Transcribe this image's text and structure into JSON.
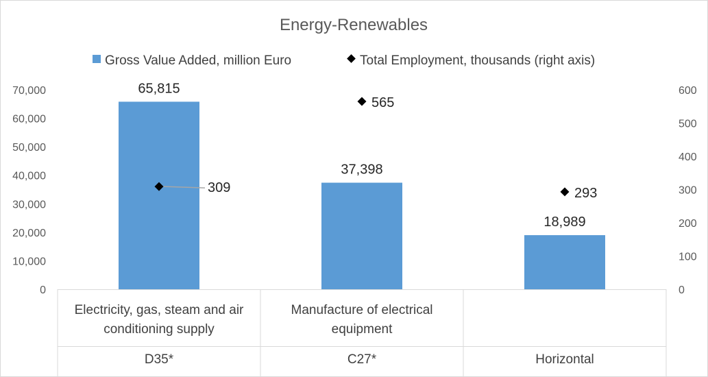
{
  "chart_data": {
    "type": "bar",
    "title": "Energy-Renewables",
    "legend_position": "top",
    "grid": false,
    "categories": [
      {
        "name": [
          "Electricity, gas, steam and air",
          "conditioning supply"
        ],
        "code": "D35*"
      },
      {
        "name": [
          "Manufacture of electrical",
          "equipment"
        ],
        "code": "C27*"
      },
      {
        "name": [],
        "code": "Horizontal"
      }
    ],
    "series": [
      {
        "name": "Gross Value Added, million Euro",
        "type": "bar",
        "axis": "left",
        "color": "#5b9bd5",
        "values": [
          65815,
          37398,
          18989
        ],
        "labels": [
          "65,815",
          "37,398",
          "18,989"
        ]
      },
      {
        "name": "Total Employment, thousands (right axis)",
        "type": "scatter",
        "marker": "diamond",
        "axis": "right",
        "color": "#000000",
        "values": [
          309,
          565,
          293
        ],
        "labels": [
          "309",
          "565",
          "293"
        ]
      }
    ],
    "y_left": {
      "min": 0,
      "max": 70000,
      "ticks": [
        "0",
        "10,000",
        "20,000",
        "30,000",
        "40,000",
        "50,000",
        "60,000",
        "70,000"
      ]
    },
    "y_right": {
      "min": 0,
      "max": 600,
      "ticks": [
        "0",
        "100",
        "200",
        "300",
        "400",
        "500",
        "600"
      ]
    }
  }
}
